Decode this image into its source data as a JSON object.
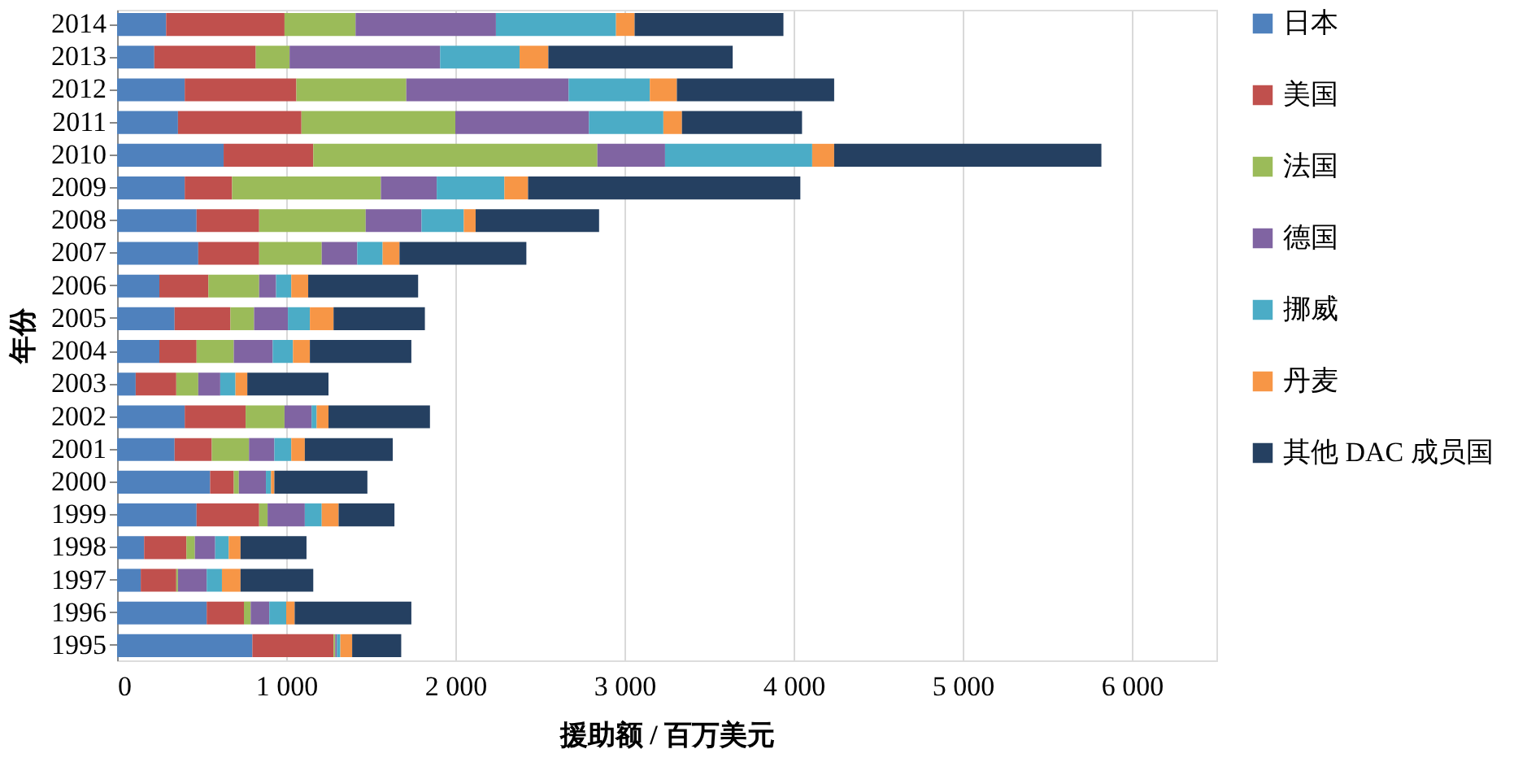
{
  "chart_data": {
    "type": "bar",
    "orientation": "horizontal",
    "stacked": true,
    "categories": [
      "2014",
      "2013",
      "2012",
      "2011",
      "2010",
      "2009",
      "2008",
      "2007",
      "2006",
      "2005",
      "2004",
      "2003",
      "2002",
      "2001",
      "2000",
      "1999",
      "1998",
      "1997",
      "1996",
      "1995"
    ],
    "series": [
      {
        "name": "日本",
        "color": "#4f81bd",
        "values": [
          290,
          220,
          400,
          360,
          630,
          400,
          470,
          480,
          250,
          340,
          250,
          110,
          400,
          340,
          550,
          470,
          160,
          140,
          530,
          800
        ]
      },
      {
        "name": "美国",
        "color": "#c0504d",
        "values": [
          700,
          600,
          660,
          730,
          530,
          280,
          370,
          360,
          290,
          330,
          220,
          240,
          360,
          220,
          140,
          370,
          250,
          210,
          220,
          480
        ]
      },
      {
        "name": "法国",
        "color": "#9bbb59",
        "values": [
          420,
          200,
          650,
          910,
          1680,
          880,
          630,
          370,
          300,
          140,
          220,
          130,
          230,
          220,
          30,
          50,
          50,
          10,
          40,
          10
        ]
      },
      {
        "name": "德国",
        "color": "#8064a2",
        "values": [
          830,
          890,
          960,
          790,
          400,
          330,
          330,
          210,
          100,
          200,
          230,
          130,
          160,
          150,
          160,
          220,
          120,
          170,
          110,
          10
        ]
      },
      {
        "name": "挪威",
        "color": "#4bacc6",
        "values": [
          710,
          470,
          480,
          440,
          870,
          400,
          250,
          150,
          90,
          130,
          120,
          90,
          30,
          100,
          30,
          100,
          80,
          90,
          100,
          20
        ]
      },
      {
        "name": "丹麦",
        "color": "#f79646",
        "values": [
          110,
          170,
          160,
          110,
          130,
          140,
          70,
          100,
          100,
          140,
          100,
          70,
          70,
          80,
          20,
          100,
          70,
          110,
          50,
          70
        ]
      },
      {
        "name": "其他 DAC 成员国",
        "color": "#254061",
        "values": [
          880,
          1090,
          930,
          710,
          1580,
          1610,
          730,
          750,
          650,
          540,
          600,
          480,
          600,
          520,
          550,
          330,
          390,
          430,
          690,
          290
        ]
      }
    ],
    "xlim": [
      0,
      6500
    ],
    "xticks": [
      0,
      {
        "value": 1000,
        "label": "1 000"
      },
      {
        "value": 2000,
        "label": "2 000"
      },
      {
        "value": 3000,
        "label": "3 000"
      },
      {
        "value": 4000,
        "label": "4 000"
      },
      {
        "value": 5000,
        "label": "5 000"
      },
      {
        "value": 6000,
        "label": "6 000"
      }
    ],
    "xlabel": "援助额 / 百万美元",
    "ylabel": "年份",
    "grid": "x",
    "legend": "right"
  }
}
